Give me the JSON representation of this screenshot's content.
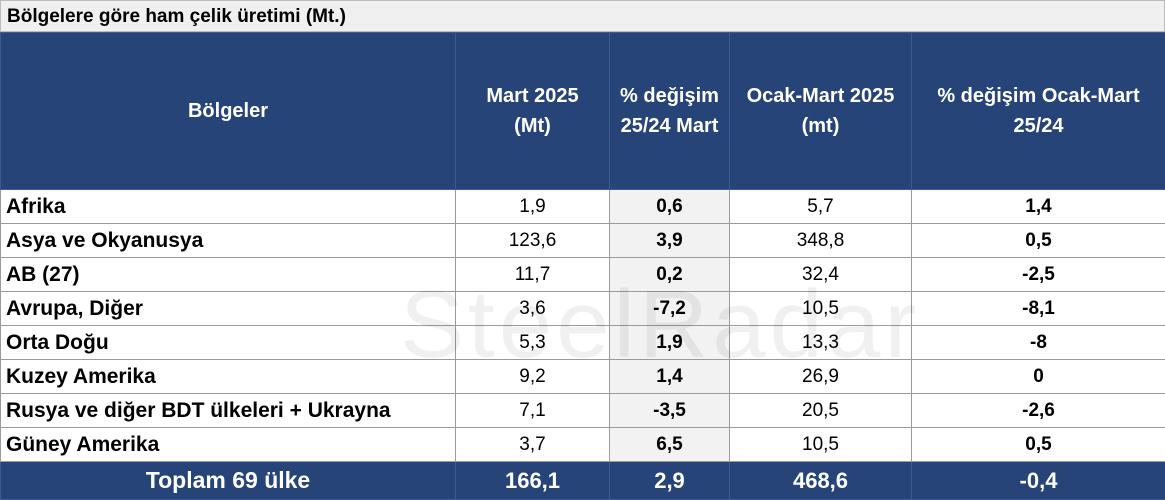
{
  "header": {
    "title": "Bölgelere göre ham çelik üretimi (Mt.)"
  },
  "watermark": "SteelRadar",
  "table": {
    "columns": [
      [
        "Bölgeler"
      ],
      [
        "Mart 2025",
        "(Mt)"
      ],
      [
        "% değişim",
        "25/24 Mart"
      ],
      [
        "Ocak-Mart 2025",
        "(mt)"
      ],
      [
        "% değişim Ocak-Mart",
        "25/24"
      ]
    ],
    "rows": [
      [
        "Afrika",
        "1,9",
        "0,6",
        "5,7",
        "1,4"
      ],
      [
        "Asya ve Okyanusya",
        "123,6",
        "3,9",
        "348,8",
        "0,5"
      ],
      [
        "AB (27)",
        "11,7",
        "0,2",
        "32,4",
        "-2,5"
      ],
      [
        "Avrupa, Diğer",
        "3,6",
        "-7,2",
        "10,5",
        "-8,1"
      ],
      [
        "Orta Doğu",
        "5,3",
        "1,9",
        "13,3",
        "-8"
      ],
      [
        "Kuzey Amerika",
        "9,2",
        "1,4",
        "26,9",
        "0"
      ],
      [
        "Rusya ve diğer BDT ülkeleri + Ukrayna",
        "7,1",
        "-3,5",
        "20,5",
        "-2,6"
      ],
      [
        "Güney Amerika",
        "3,7",
        "6,5",
        "10,5",
        "0,5"
      ]
    ],
    "total": [
      "Toplam 69 ülke",
      "166,1",
      "2,9",
      "468,6",
      "-0,4"
    ]
  }
}
